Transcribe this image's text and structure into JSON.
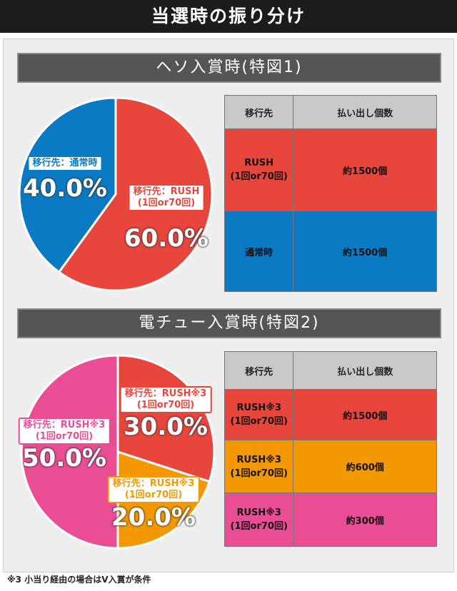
{
  "title": "当選時の振り分け",
  "chart_data": [
    {
      "type": "pie",
      "title": "ヘソ入賞時(特図1)",
      "categories": [
        "移行先：RUSH\n(1回or70回)",
        "移行先：通常時"
      ],
      "values": [
        60,
        40
      ],
      "value_labels": [
        "60.0%",
        "40.0%"
      ],
      "colors": [
        "#e8453c",
        "#0b7ac4"
      ]
    },
    {
      "type": "pie",
      "title": "電チュー入賞時(特図2)",
      "categories": [
        "移行先：RUSH※3\n(1回or70回)",
        "移行先：RUSH※3\n(1回or70回)",
        "移行先：RUSH※3\n(1回or70回)"
      ],
      "values": [
        30,
        20,
        50
      ],
      "value_labels": [
        "30.0%",
        "20.0%",
        "50.0%"
      ],
      "colors": [
        "#e8453c",
        "#f39800",
        "#e94d93"
      ]
    }
  ],
  "tables": [
    {
      "columns": [
        "移行先",
        "払い出し個数"
      ],
      "rows": [
        [
          "RUSH\n(1回or70回)",
          "約1500個"
        ],
        [
          "通常時",
          "約1500個"
        ]
      ]
    },
    {
      "columns": [
        "移行先",
        "払い出し個数"
      ],
      "rows": [
        [
          "RUSH※3\n(1回or70回)",
          "約1500個"
        ],
        [
          "RUSH※3\n(1回or70回)",
          "約600個"
        ],
        [
          "RUSH※3\n(1回or70回)",
          "約300個"
        ]
      ]
    }
  ],
  "footnote": "※3 小当り経由の場合はV入賞が条件"
}
